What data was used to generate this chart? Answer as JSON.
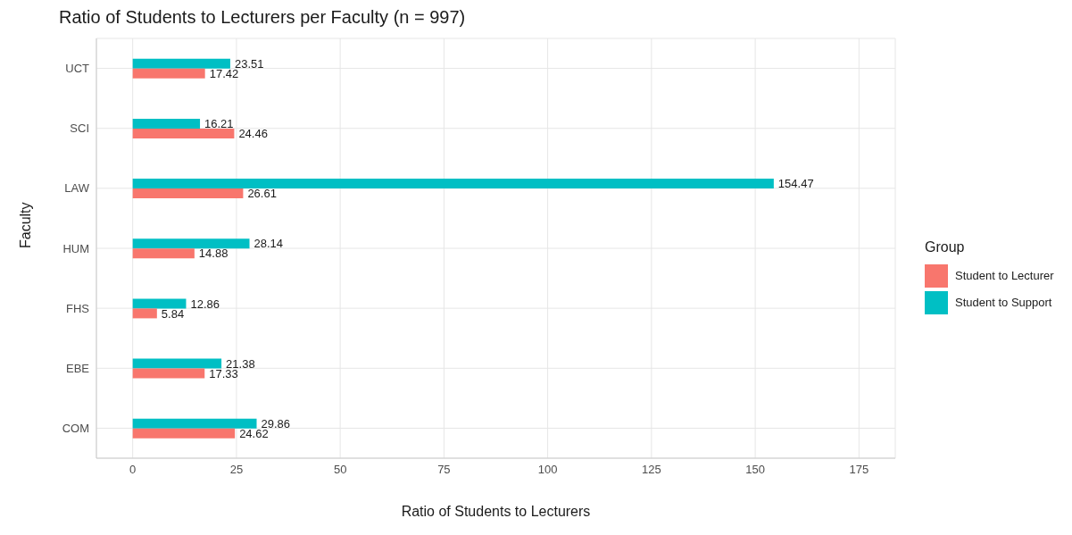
{
  "chart_data": {
    "type": "bar",
    "orientation": "horizontal",
    "title": "Ratio of Students to Lecturers per Faculty (n = 997)",
    "xlabel": "Ratio of Students to Lecturers",
    "ylabel": "Faculty",
    "legend_title": "Group",
    "legend": "right",
    "grid": true,
    "data_labels": true,
    "categories": [
      "UCT",
      "SCI",
      "LAW",
      "HUM",
      "FHS",
      "EBE",
      "COM"
    ],
    "series": [
      {
        "name": "Student to Lecturer",
        "color": "#f8766d",
        "values": [
          17.42,
          24.46,
          26.61,
          14.88,
          5.84,
          17.33,
          24.62
        ]
      },
      {
        "name": "Student to Support",
        "color": "#00bfc4",
        "values": [
          23.51,
          16.21,
          154.47,
          28.14,
          12.86,
          21.38,
          29.86
        ]
      }
    ],
    "xlim": [
      -8.75,
      183.75
    ],
    "xticks": [
      0,
      25,
      50,
      75,
      100,
      125,
      150,
      175
    ]
  }
}
